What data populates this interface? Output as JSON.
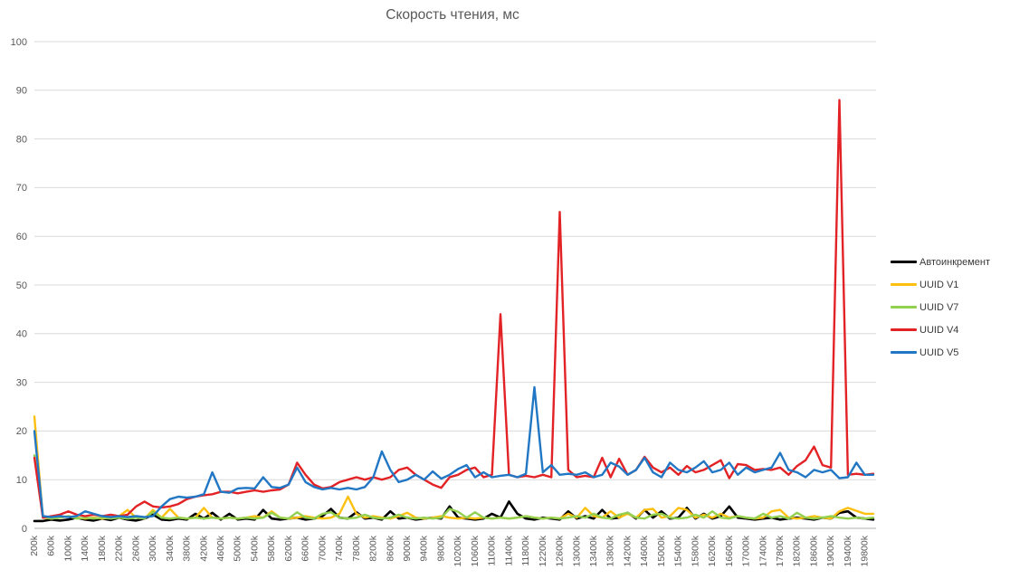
{
  "chart_data": {
    "type": "line",
    "title": "Скорость чтения, мс",
    "ylim": [
      0,
      100
    ],
    "y_tick_step": 10,
    "grid": "horizontal",
    "legend_position": "right",
    "x_points_start_k": 200,
    "x_points_step_k": 200,
    "x_points_count": 100,
    "x_tick_labels": [
      "200k",
      "600k",
      "1000k",
      "1400k",
      "1800k",
      "2200k",
      "2600k",
      "3000k",
      "3400k",
      "3800k",
      "4200k",
      "4600k",
      "5000k",
      "5400k",
      "5800k",
      "6200k",
      "6600k",
      "7000k",
      "7400k",
      "7800k",
      "8200k",
      "8600k",
      "9000k",
      "9400k",
      "9800k",
      "10200k",
      "10600k",
      "11000k",
      "11400k",
      "11800k",
      "12200k",
      "12600k",
      "13000k",
      "13400k",
      "13800k",
      "14200k",
      "14600k",
      "15000k",
      "15400k",
      "15800k",
      "16200k",
      "16600k",
      "17000k",
      "17400k",
      "17800k",
      "18200k",
      "18600k",
      "19000k",
      "19400k",
      "19800k"
    ],
    "series": [
      {
        "name": "Автоинкремент",
        "color": "#000000",
        "values": [
          1.5,
          1.5,
          1.8,
          1.6,
          1.8,
          2.2,
          1.8,
          1.6,
          2.0,
          1.7,
          2.2,
          1.8,
          1.6,
          2.0,
          2.8,
          1.8,
          1.7,
          2.0,
          1.8,
          3.0,
          2.0,
          3.2,
          1.8,
          3.0,
          1.8,
          2.0,
          1.8,
          3.8,
          2.0,
          1.8,
          2.0,
          2.2,
          1.8,
          2.0,
          2.5,
          4.0,
          2.2,
          2.0,
          3.3,
          2.0,
          2.2,
          1.8,
          3.5,
          2.0,
          2.2,
          1.8,
          2.0,
          2.2,
          2.0,
          4.5,
          2.2,
          2.0,
          1.8,
          2.0,
          3.0,
          2.2,
          5.5,
          3.0,
          2.0,
          1.8,
          2.2,
          2.0,
          1.8,
          3.5,
          2.0,
          2.5,
          2.0,
          3.8,
          2.0,
          2.2,
          3.2,
          2.0,
          3.8,
          2.2,
          3.5,
          2.0,
          2.2,
          4.2,
          2.0,
          3.0,
          2.0,
          2.5,
          4.5,
          2.2,
          2.0,
          1.8,
          2.0,
          2.2,
          1.8,
          2.0,
          2.2,
          2.0,
          1.8,
          2.2,
          2.0,
          3.2,
          3.5,
          2.2,
          2.0,
          1.8
        ]
      },
      {
        "name": "UUID V1",
        "color": "#fdc010",
        "values": [
          23,
          2.2,
          2.0,
          2.2,
          2.5,
          2.2,
          2.0,
          2.2,
          2.0,
          2.2,
          2.5,
          3.8,
          2.2,
          2.0,
          3.8,
          2.2,
          4.0,
          2.2,
          2.0,
          2.2,
          4.2,
          2.2,
          2.0,
          2.2,
          2.0,
          2.2,
          2.5,
          2.2,
          3.5,
          2.2,
          2.0,
          2.2,
          2.5,
          2.2,
          2.0,
          2.2,
          3.0,
          6.5,
          3.0,
          2.2,
          2.5,
          2.2,
          2.0,
          2.5,
          3.2,
          2.2,
          2.0,
          2.2,
          2.5,
          2.2,
          2.0,
          2.2,
          2.0,
          2.2,
          2.0,
          2.2,
          2.0,
          2.2,
          2.5,
          2.2,
          2.0,
          2.2,
          2.0,
          3.0,
          2.2,
          4.2,
          2.5,
          2.2,
          3.5,
          2.2,
          3.0,
          2.2,
          3.8,
          4.0,
          2.2,
          2.5,
          4.2,
          3.8,
          2.2,
          2.8,
          2.2,
          3.0,
          2.2,
          2.5,
          2.2,
          2.0,
          2.2,
          3.5,
          3.8,
          2.2,
          2.0,
          2.2,
          2.5,
          2.2,
          2.0,
          3.5,
          4.2,
          3.6,
          3.0,
          3.0
        ]
      },
      {
        "name": "UUID V7",
        "color": "#92d050",
        "values": [
          15,
          2.3,
          2.0,
          2.2,
          2.5,
          2.0,
          2.2,
          2.0,
          2.2,
          2.0,
          2.2,
          2.0,
          2.2,
          2.0,
          3.4,
          2.2,
          2.0,
          2.2,
          2.0,
          2.2,
          2.0,
          2.2,
          2.0,
          2.2,
          2.0,
          2.2,
          2.0,
          2.2,
          3.2,
          2.2,
          2.0,
          3.3,
          2.2,
          2.0,
          3.0,
          3.3,
          2.2,
          2.0,
          2.2,
          2.8,
          2.2,
          2.0,
          2.2,
          2.8,
          2.2,
          2.0,
          2.2,
          2.0,
          2.2,
          4.0,
          3.4,
          2.2,
          3.3,
          2.2,
          2.0,
          2.2,
          2.0,
          2.2,
          2.5,
          2.2,
          2.0,
          2.2,
          2.0,
          2.2,
          2.5,
          2.2,
          3.0,
          2.2,
          2.0,
          2.8,
          3.2,
          2.2,
          2.0,
          2.8,
          3.0,
          2.2,
          2.0,
          2.2,
          2.8,
          2.2,
          3.5,
          2.2,
          2.0,
          2.5,
          2.2,
          2.0,
          3.0,
          2.2,
          2.5,
          2.0,
          3.2,
          2.2,
          2.0,
          2.2,
          2.5,
          2.2,
          2.0,
          2.2,
          2.0,
          2.2
        ]
      },
      {
        "name": "UUID V4",
        "color": "#e32226",
        "values": [
          14.5,
          2.2,
          2.5,
          2.8,
          3.5,
          2.8,
          2.5,
          2.8,
          2.5,
          2.8,
          2.5,
          2.8,
          4.5,
          5.5,
          4.5,
          4.3,
          4.5,
          5.0,
          6.0,
          6.5,
          6.8,
          7.0,
          7.5,
          7.5,
          7.2,
          7.5,
          7.8,
          7.5,
          7.8,
          8.0,
          9.0,
          13.5,
          11.0,
          9.0,
          8.2,
          8.5,
          9.5,
          10.0,
          10.5,
          10.0,
          10.5,
          10.0,
          10.5,
          12.0,
          12.5,
          11.0,
          10.0,
          9.0,
          8.3,
          10.5,
          11.0,
          12.0,
          12.5,
          10.5,
          11.0,
          44.0,
          11.0,
          10.5,
          10.8,
          10.5,
          11.0,
          10.5,
          65.0,
          12.0,
          10.5,
          10.8,
          10.5,
          14.5,
          10.5,
          14.3,
          11.0,
          12.0,
          14.7,
          12.5,
          11.5,
          12.5,
          11.0,
          12.8,
          11.5,
          12.0,
          13.0,
          14.0,
          10.3,
          13.2,
          13.0,
          12.0,
          12.2,
          12.0,
          12.5,
          11.0,
          12.8,
          14.0,
          16.8,
          13.0,
          12.5,
          88.0,
          11.0,
          11.2,
          11.0,
          11.2
        ]
      },
      {
        "name": "UUID V5",
        "color": "#2277c4",
        "values": [
          20,
          2.5,
          2.3,
          2.5,
          2.3,
          2.5,
          3.5,
          3.0,
          2.5,
          2.3,
          2.5,
          2.3,
          2.5,
          2.3,
          2.5,
          4.5,
          6.0,
          6.5,
          6.3,
          6.5,
          7.0,
          11.5,
          7.5,
          7.3,
          8.2,
          8.3,
          8.2,
          10.5,
          8.5,
          8.3,
          9.0,
          12.5,
          9.5,
          8.5,
          8.0,
          8.3,
          8.0,
          8.3,
          8.0,
          8.5,
          10.5,
          15.8,
          12.0,
          9.5,
          10.0,
          11.0,
          10.0,
          11.7,
          10.2,
          11.0,
          12.2,
          13.0,
          10.5,
          11.5,
          10.5,
          10.8,
          11.0,
          10.5,
          11.2,
          29.0,
          11.5,
          13.0,
          11.0,
          11.2,
          11.0,
          11.5,
          10.5,
          11.0,
          13.5,
          12.7,
          11.0,
          12.0,
          14.5,
          11.5,
          10.5,
          13.5,
          12.0,
          11.5,
          12.5,
          13.8,
          11.5,
          12.0,
          13.5,
          11.0,
          12.5,
          11.5,
          12.0,
          12.5,
          15.5,
          12.0,
          11.5,
          10.5,
          12.0,
          11.5,
          12.0,
          10.3,
          10.5,
          13.5,
          11.0,
          11.0
        ]
      }
    ]
  },
  "colors": {
    "background": "#ffffff",
    "grid": "#d9d9d9",
    "axis": "#bfbfbf",
    "tick_text": "#595959",
    "title_text": "#595959",
    "legend_text": "#3a3a3a"
  }
}
